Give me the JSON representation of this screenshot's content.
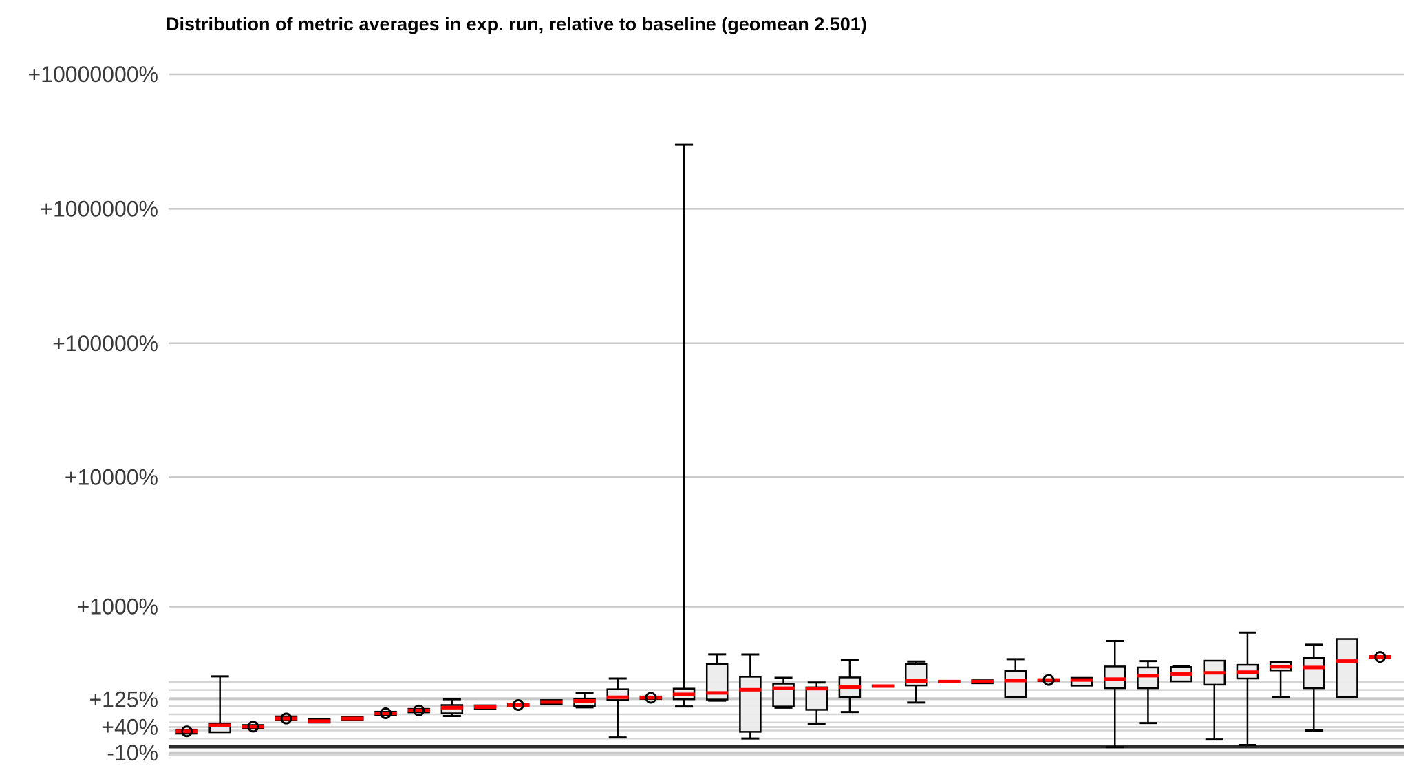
{
  "chart_data": {
    "type": "boxplot",
    "title": "Distribution of metric averages in exp. run, relative to baseline (geomean 2.501)",
    "geomean": 2.501,
    "orientation": "vertical",
    "grid": true,
    "legend": "none",
    "x_axis": {
      "label": "",
      "tick_labels_visible": false,
      "num_boxes": 37
    },
    "y_axis": {
      "label": "",
      "unit": "percent relative to baseline",
      "scale": "log10 of ratio (1 + pct/100)",
      "major_ticks": [
        {
          "label": "+10000000%",
          "pct": 10000000
        },
        {
          "label": "+1000000%",
          "pct": 1000000
        },
        {
          "label": "+100000%",
          "pct": 100000
        },
        {
          "label": "+10000%",
          "pct": 10000
        },
        {
          "label": "+1000%",
          "pct": 1000
        },
        {
          "label": "+125%",
          "pct": 125
        },
        {
          "label": "+40%",
          "pct": 40
        },
        {
          "label": "-10%",
          "pct": -10
        }
      ],
      "minor_tick_pcts": [
        -12.9,
        14.9,
        32.0,
        51.6,
        74.1,
        100.0,
        129.7,
        163.9,
        203.1
      ],
      "zero_line_pct": 0,
      "range_pct": [
        -15,
        10000000
      ]
    },
    "boxes": [
      {
        "w_lo": null,
        "q1": 25,
        "med": 30,
        "q3": 34,
        "w_hi": null,
        "circle": true
      },
      {
        "w_lo": null,
        "q1": 28,
        "med": 44,
        "q3": 49,
        "w_hi": 233,
        "circle": false
      },
      {
        "w_lo": null,
        "q1": 37,
        "med": 41,
        "q3": 45,
        "w_hi": null,
        "circle": true
      },
      {
        "w_lo": null,
        "q1": 57,
        "med": 62,
        "q3": 68,
        "w_hi": null,
        "circle": true
      },
      {
        "w_lo": null,
        "q1": 51,
        "med": 55,
        "q3": 60,
        "w_hi": null,
        "circle": false
      },
      {
        "w_lo": null,
        "q1": 57,
        "med": 62,
        "q3": 66,
        "w_hi": null,
        "circle": false
      },
      {
        "w_lo": null,
        "q1": 72,
        "med": 77,
        "q3": 82,
        "w_hi": null,
        "circle": true
      },
      {
        "w_lo": null,
        "q1": 80,
        "med": 86,
        "q3": 91,
        "w_hi": null,
        "circle": true
      },
      {
        "w_lo": 69,
        "q1": 77,
        "med": 95,
        "q3": 104,
        "w_hi": 125,
        "circle": false
      },
      {
        "w_lo": null,
        "q1": 91,
        "med": 97,
        "q3": 103,
        "w_hi": null,
        "circle": false
      },
      {
        "w_lo": null,
        "q1": 99,
        "med": 104,
        "q3": 109,
        "w_hi": null,
        "circle": true
      },
      {
        "w_lo": null,
        "q1": 108,
        "med": 115,
        "q3": 122,
        "w_hi": null,
        "circle": false
      },
      {
        "w_lo": 96,
        "q1": 100,
        "med": 119,
        "q3": 125,
        "w_hi": 152,
        "circle": false
      },
      {
        "w_lo": 17,
        "q1": 122,
        "med": 133,
        "q3": 167,
        "w_hi": 221,
        "circle": false
      },
      {
        "w_lo": null,
        "q1": 126,
        "med": 131,
        "q3": 136,
        "w_hi": null,
        "circle": true
      },
      {
        "w_lo": 99,
        "q1": 125,
        "med": 145,
        "q3": 170,
        "w_hi": 3000000,
        "circle": false
      },
      {
        "w_lo": 120,
        "q1": 124,
        "med": 151,
        "q3": 311,
        "w_hi": 386,
        "circle": false
      },
      {
        "w_lo": 15,
        "q1": 29,
        "med": 165,
        "q3": 231,
        "w_hi": 385,
        "circle": false
      },
      {
        "w_lo": 95,
        "q1": 99,
        "med": 172,
        "q3": 194,
        "w_hi": 225,
        "circle": false
      },
      {
        "w_lo": 47,
        "q1": 88,
        "med": 170,
        "q3": 176,
        "w_hi": 200,
        "circle": false
      },
      {
        "w_lo": 81,
        "q1": 133,
        "med": 177,
        "q3": 227,
        "w_hi": 341,
        "circle": false
      },
      {
        "w_lo": null,
        "q1": 178,
        "med": 182,
        "q3": 186,
        "w_hi": null,
        "circle": false
      },
      {
        "w_lo": 113,
        "q1": 185,
        "med": 208,
        "q3": 311,
        "w_hi": 330,
        "circle": false
      },
      {
        "w_lo": null,
        "q1": 203,
        "med": 205,
        "q3": 208,
        "w_hi": null,
        "circle": false
      },
      {
        "w_lo": null,
        "q1": 196,
        "med": 205,
        "q3": 212,
        "w_hi": null,
        "circle": false
      },
      {
        "w_lo": 133,
        "q1": 133,
        "med": 210,
        "q3": 266,
        "w_hi": 347,
        "circle": false
      },
      {
        "w_lo": null,
        "q1": 207,
        "med": 213,
        "q3": 217,
        "w_hi": null,
        "circle": true
      },
      {
        "w_lo": null,
        "q1": 184,
        "med": 213,
        "q3": 225,
        "w_hi": null,
        "circle": false
      },
      {
        "w_lo": -1,
        "q1": 172,
        "med": 218,
        "q3": 295,
        "w_hi": 510,
        "circle": false
      },
      {
        "w_lo": 50,
        "q1": 172,
        "med": 237,
        "q3": 288,
        "w_hi": 333,
        "circle": false
      },
      {
        "w_lo": null,
        "q1": 206,
        "med": 247,
        "q3": 291,
        "w_hi": 296,
        "circle": false
      },
      {
        "w_lo": 13,
        "q1": 189,
        "med": 254,
        "q3": 336,
        "w_hi": 339,
        "circle": false
      },
      {
        "w_lo": 3,
        "q1": 221,
        "med": 258,
        "q3": 306,
        "w_hi": 605,
        "circle": false
      },
      {
        "w_lo": 133,
        "q1": 269,
        "med": 293,
        "q3": 327,
        "w_hi": null,
        "circle": false
      },
      {
        "w_lo": 32,
        "q1": 172,
        "med": 288,
        "q3": 357,
        "w_hi": 473,
        "circle": false
      },
      {
        "w_lo": null,
        "q1": 133,
        "med": 333,
        "q3": 532,
        "w_hi": null,
        "circle": false
      },
      {
        "w_lo": null,
        "q1": 358,
        "med": 365,
        "q3": 372,
        "w_hi": null,
        "circle": true
      }
    ]
  },
  "colors": {
    "background": "#ffffff",
    "title_text": "#000000",
    "tick_text": "#3a3a3a",
    "grid_minor": "#d6d6d6",
    "grid_major": "#c8c8c8",
    "zero_line": "#2b2b2b",
    "box_fill": "#ececec",
    "box_stroke": "#000000",
    "median": "#fe0000",
    "circle_stroke": "#000000"
  }
}
